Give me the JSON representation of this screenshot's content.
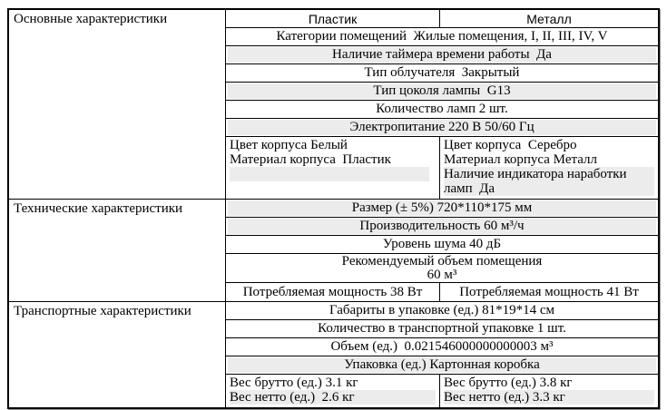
{
  "columns": {
    "plastic": "Пластик",
    "metal": "Металл"
  },
  "sections": {
    "main": {
      "label": "Основные характеристики",
      "categories": "Категории помещений  Жилые помещения, I, II, III, IV, V",
      "timer": "Наличие таймера времени работы  Да",
      "irradiator_type": "Тип облучателя  Закрытый",
      "socket_type": "Тип цоколя лампы  G13",
      "lamp_count": "Количество ламп 2 шт.",
      "power_supply": "Электропитание 220 В 50/60 Гц",
      "plastic_body": {
        "color": "Цвет корпуса Белый",
        "material": "Материал корпуса  Пластик"
      },
      "metal_body": {
        "color": "Цвет корпуса  Серебро",
        "material": "Материал корпуса Металл",
        "indicator": "Наличие индикатора наработки ламп  Да"
      }
    },
    "technical": {
      "label": "Технические характеристики",
      "size": "Размер (± 5%) 720*110*175 мм",
      "productivity": "Производительность 60 м³/ч",
      "noise": "Уровень шума 40 дБ",
      "room_volume": {
        "line1": "Рекомендуемый объем помещения",
        "line2": "60 м³"
      },
      "power_plastic": "Потребляемая мощность 38 Вт",
      "power_metal": "Потребляемая мощность 41 Вт"
    },
    "transport": {
      "label": "Транспортные характеристики",
      "package_size": "Габариты в упаковке (ед.) 81*19*14 см",
      "transport_qty": "Количество в транспортной упаковке 1 шт.",
      "unit_volume": "Объем (ед.)  0.021546000000000003 м³",
      "package_type": "Упаковка (ед.) Картонная коробка",
      "plastic_weight": {
        "gross": "Вес брутто (ед.) 3.1 кг",
        "net": "Вес нетто (ед.)  2.6 кг"
      },
      "metal_weight": {
        "gross": "Вес брутто (ед.) 3.8 кг",
        "net": "Вес нетто (ед.) 3.3 кг"
      }
    }
  },
  "colors": {
    "row_highlight": "#ececec",
    "border": "#000000",
    "text": "#000000",
    "background": "#ffffff"
  }
}
